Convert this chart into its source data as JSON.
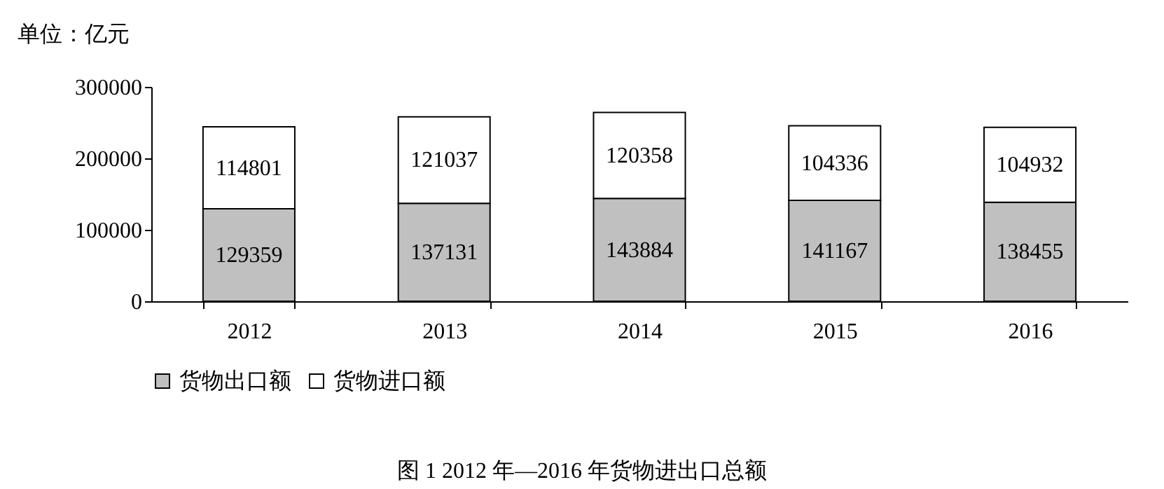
{
  "chart_data": {
    "type": "bar",
    "stacked": true,
    "title": "图 1 2012 年—2016 年货物进出口总额",
    "ylabel": "单位：亿元",
    "categories": [
      "2012",
      "2013",
      "2014",
      "2015",
      "2016"
    ],
    "series": [
      {
        "name": "货物出口额",
        "color": "#c0c0c0",
        "values": [
          129359,
          137131,
          143884,
          141167,
          138455
        ]
      },
      {
        "name": "货物进口额",
        "color": "#ffffff",
        "values": [
          114801,
          121037,
          120358,
          104336,
          104932
        ]
      }
    ],
    "ylim": [
      0,
      300000
    ],
    "yticks": [
      0,
      100000,
      200000,
      300000
    ],
    "data_labels": true,
    "legend": "bottom",
    "grid": false
  }
}
